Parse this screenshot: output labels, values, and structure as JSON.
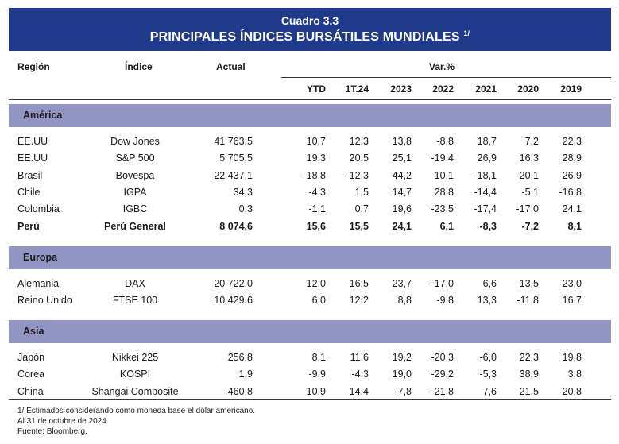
{
  "title": {
    "line1": "Cuadro 3.3",
    "line2": "PRINCIPALES ÍNDICES BURSÁTILES MUNDIALES",
    "footnote_mark": "1/"
  },
  "header": {
    "region": "Región",
    "index": "Índice",
    "actual": "Actual",
    "var": "Var.%",
    "periods": [
      "YTD",
      "1T.24",
      "2023",
      "2022",
      "2021",
      "2020",
      "2019"
    ]
  },
  "sections": [
    {
      "name": "América",
      "rows": [
        {
          "region": "EE.UU",
          "index": "Dow Jones",
          "actual": "41 763,5",
          "values": [
            "10,7",
            "12,3",
            "13,8",
            "-8,8",
            "18,7",
            "7,2",
            "22,3"
          ]
        },
        {
          "region": "EE.UU",
          "index": "S&P 500",
          "actual": "5 705,5",
          "values": [
            "19,3",
            "20,5",
            "25,1",
            "-19,4",
            "26,9",
            "16,3",
            "28,9"
          ]
        },
        {
          "region": "Brasil",
          "index": "Bovespa",
          "actual": "22 437,1",
          "values": [
            "-18,8",
            "-12,3",
            "44,2",
            "10,1",
            "-18,1",
            "-20,1",
            "26,9"
          ]
        },
        {
          "region": "Chile",
          "index": "IGPA",
          "actual": "34,3",
          "values": [
            "-4,3",
            "1,5",
            "14,7",
            "28,8",
            "-14,4",
            "-5,1",
            "-16,8"
          ]
        },
        {
          "region": "Colombia",
          "index": "IGBC",
          "actual": "0,3",
          "values": [
            "-1,1",
            "0,7",
            "19,6",
            "-23,5",
            "-17,4",
            "-17,0",
            "24,1"
          ]
        },
        {
          "region": "Perú",
          "index": "Perú General",
          "actual": "8 074,6",
          "values": [
            "15,6",
            "15,5",
            "24,1",
            "6,1",
            "-8,3",
            "-7,2",
            "8,1"
          ],
          "bold": true
        }
      ]
    },
    {
      "name": "Europa",
      "rows": [
        {
          "region": "Alemania",
          "index": "DAX",
          "actual": "20 722,0",
          "values": [
            "12,0",
            "16,5",
            "23,7",
            "-17,0",
            "6,6",
            "13,5",
            "23,0"
          ]
        },
        {
          "region": "Reino Unido",
          "index": "FTSE 100",
          "actual": "10 429,6",
          "values": [
            "6,0",
            "12,2",
            "8,8",
            "-9,8",
            "13,3",
            "-11,8",
            "16,7"
          ]
        }
      ]
    },
    {
      "name": "Asia",
      "rows": [
        {
          "region": "Japón",
          "index": "Nikkei 225",
          "actual": "256,8",
          "values": [
            "8,1",
            "11,6",
            "19,2",
            "-20,3",
            "-6,0",
            "22,3",
            "19,8"
          ]
        },
        {
          "region": "Corea",
          "index": "KOSPI",
          "actual": "1,9",
          "values": [
            "-9,9",
            "-4,3",
            "19,0",
            "-29,2",
            "-5,3",
            "38,9",
            "3,8"
          ]
        },
        {
          "region": "China",
          "index": "Shangai Composite",
          "actual": "460,8",
          "values": [
            "10,9",
            "14,4",
            "-7,8",
            "-21,8",
            "7,6",
            "21,5",
            "20,8"
          ]
        }
      ]
    }
  ],
  "footnotes": [
    "1/ Estimados considerando como moneda base el dólar americano.",
    "Al 31 de octubre de 2024.",
    "Fuente: Bloomberg."
  ],
  "colors": {
    "title_band": "#1f3a8a",
    "section_band": "#9294c4"
  }
}
